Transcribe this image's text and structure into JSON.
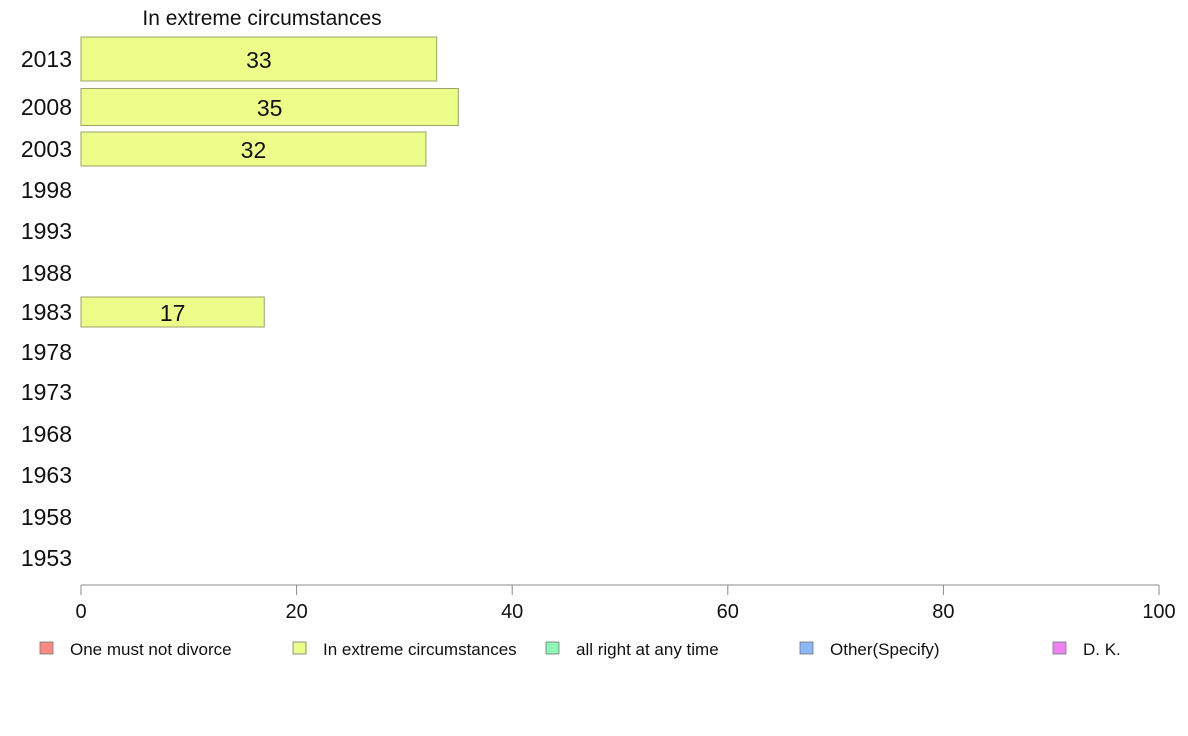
{
  "chart_data": {
    "type": "bar",
    "orientation": "horizontal",
    "title": "In extreme circumstances",
    "categories": [
      "2013",
      "2008",
      "2003",
      "1998",
      "1993",
      "1988",
      "1983",
      "1978",
      "1973",
      "1968",
      "1963",
      "1958",
      "1953"
    ],
    "series": [
      {
        "name": "In extreme circumstances",
        "color": "#edfd8a",
        "values": [
          33,
          35,
          32,
          null,
          null,
          null,
          17,
          null,
          null,
          null,
          null,
          null,
          null
        ],
        "labels": [
          "33",
          "35",
          "32",
          null,
          null,
          null,
          "17",
          null,
          null,
          null,
          null,
          null,
          null
        ]
      }
    ],
    "xlim": [
      0,
      100
    ],
    "xticks": [
      0,
      20,
      40,
      60,
      80,
      100
    ],
    "grid": false,
    "legend_position": "bottom",
    "legend": [
      {
        "label": "One must not divorce",
        "color": "#f78b84"
      },
      {
        "label": "In extreme circumstances",
        "color": "#edfd8a"
      },
      {
        "label": "all right at any time",
        "color": "#8ef5b4"
      },
      {
        "label": "Other(Specify)",
        "color": "#8bb8f5"
      },
      {
        "label": "D. K.",
        "color": "#ec81ef"
      }
    ]
  }
}
